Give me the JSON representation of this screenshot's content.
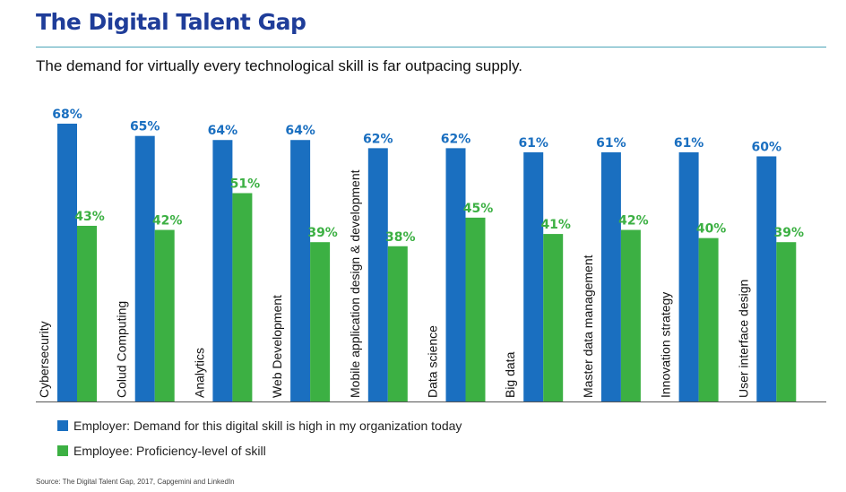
{
  "header": {
    "title": "The Digital Talent Gap",
    "subtitle": "The demand for virtually every technological skill is far outpacing supply."
  },
  "footer": {
    "source": "Source: The Digital Talent Gap, 2017, Capgemini and LinkedIn"
  },
  "colors": {
    "title": "#1f3d99",
    "employer": "#1a6fc0",
    "employee": "#3cb043",
    "employer_label": "#1a6fc0",
    "employee_label": "#3cb043"
  },
  "chart_data": {
    "type": "bar",
    "categories": [
      "Cybersecurity",
      "Colud Computing",
      "Analytics",
      "Web Development",
      "Mobile application design & development",
      "Data science",
      "Big data",
      "Master data management",
      "Innovation strategy",
      "User interface design"
    ],
    "series": [
      {
        "name": "Employer: Demand for this digital skill is high in my organization today",
        "values": [
          68,
          65,
          64,
          64,
          62,
          62,
          61,
          61,
          61,
          60
        ]
      },
      {
        "name": "Employee: Proficiency-level of skill",
        "values": [
          43,
          42,
          51,
          39,
          38,
          45,
          41,
          42,
          40,
          39
        ]
      }
    ],
    "value_suffix": "%",
    "ylim": [
      0,
      72
    ],
    "legend_position": "bottom-left",
    "grid": false
  }
}
